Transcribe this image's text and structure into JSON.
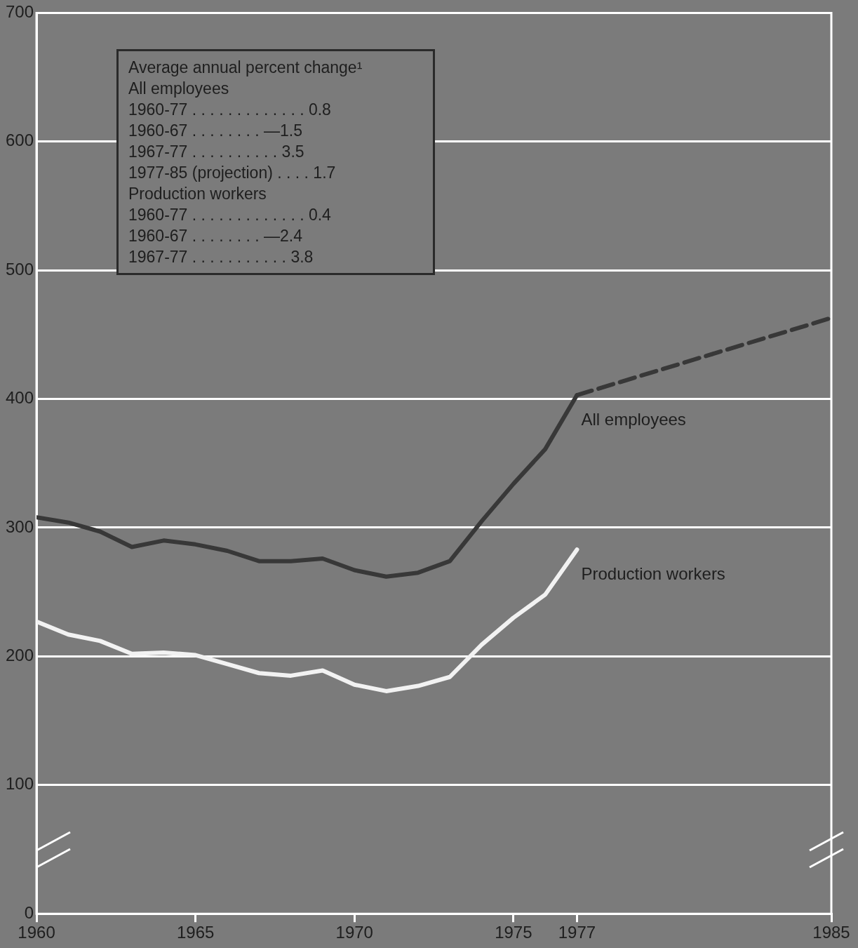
{
  "chart_data": {
    "type": "line",
    "x": [
      1960,
      1961,
      1962,
      1963,
      1964,
      1965,
      1966,
      1967,
      1968,
      1969,
      1970,
      1971,
      1972,
      1973,
      1974,
      1975,
      1976,
      1977
    ],
    "series": [
      {
        "name": "All employees",
        "color": "#383838",
        "values": [
          308,
          304,
          297,
          285,
          290,
          287,
          282,
          274,
          274,
          276,
          267,
          262,
          265,
          274,
          305,
          334,
          361,
          403
        ]
      },
      {
        "color": "#383838",
        "x": [
          1977,
          1985
        ],
        "values": [
          403,
          463
        ],
        "line_style": "dashed"
      },
      {
        "name": "Production workers",
        "color": "#f2f2f2",
        "values": [
          227,
          217,
          212,
          202,
          203,
          201,
          194,
          187,
          185,
          189,
          178,
          173,
          177,
          184,
          209,
          230,
          248,
          283
        ]
      }
    ],
    "xlim": [
      1960,
      1985
    ],
    "xticks": [
      1960,
      1965,
      1970,
      1975,
      1977,
      1985
    ],
    "ylim": [
      0,
      700
    ],
    "yticks": [
      0,
      100,
      200,
      300,
      400,
      500,
      600,
      700
    ],
    "grid": "y",
    "legend": false,
    "marker": "none",
    "line_style": "solid",
    "annotations": [
      "Average annual percent change¹",
      "All employees",
      "1960-77 . . . . . . . . . . . . . 0.8",
      "1960-67 . . . . . . . . —1.5",
      "1967-77 . . . . . . . . . . 3.5",
      "1977-85 (projection) . . . . 1.7",
      "Production workers",
      "1960-77 . . . . . . . . . . . . . 0.4",
      "1960-67 . . . . . . . . —2.4",
      "1967-77 . . . . . . . . . . . 3.8"
    ]
  }
}
